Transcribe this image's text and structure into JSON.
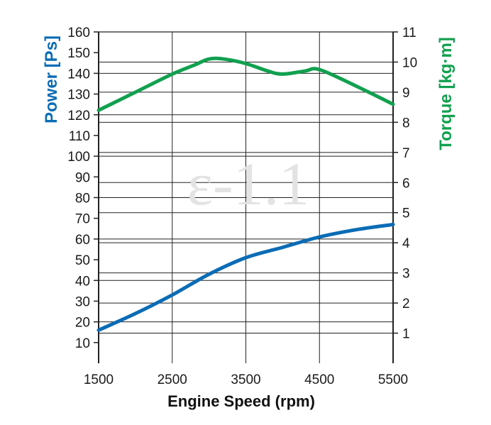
{
  "chart_data": {
    "type": "line",
    "xlabel": "Engine Speed (rpm)",
    "ylabel_left": "Power [Ps]",
    "ylabel_right": "Torque [kg·m]",
    "watermark": "ε-1.1",
    "xlim": [
      1500,
      5500
    ],
    "ylim_left": [
      0,
      160
    ],
    "ylim_right": [
      0,
      11
    ],
    "x_ticks": [
      1500,
      2500,
      3500,
      4500,
      5500
    ],
    "y_left_ticks": [
      10,
      20,
      30,
      40,
      50,
      60,
      70,
      80,
      90,
      100,
      110,
      120,
      130,
      140,
      150,
      160
    ],
    "y_right_ticks": [
      1,
      2,
      3,
      4,
      5,
      6,
      7,
      8,
      9,
      10,
      11
    ],
    "grid": true,
    "series": [
      {
        "name": "Power [Ps]",
        "axis": "left",
        "color": "#0b6cb5",
        "x": [
          1500,
          2000,
          2500,
          3000,
          3500,
          4000,
          4500,
          5000,
          5500
        ],
        "values": [
          16,
          24,
          33,
          43,
          51,
          56,
          61,
          64.5,
          67
        ]
      },
      {
        "name": "Torque [kg·m]",
        "axis": "right",
        "color": "#11a04f",
        "x": [
          1500,
          2000,
          2500,
          2800,
          3000,
          3200,
          3500,
          3800,
          4000,
          4300,
          4500,
          5000,
          5500
        ],
        "values": [
          8.4,
          9.0,
          9.6,
          9.9,
          10.1,
          10.1,
          9.95,
          9.7,
          9.6,
          9.7,
          9.75,
          9.2,
          8.6
        ]
      }
    ]
  }
}
